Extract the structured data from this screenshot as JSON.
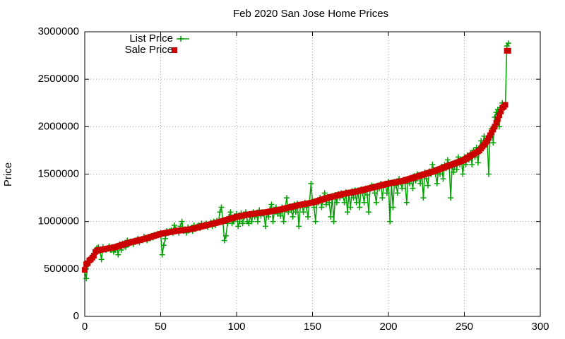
{
  "chart_data": {
    "type": "line",
    "title": "Feb 2020 San Jose Home Prices",
    "y_label": "Price",
    "xlim": [
      0,
      300
    ],
    "xticks": [
      0,
      50,
      100,
      150,
      200,
      250,
      300
    ],
    "ylim": [
      0,
      3000000
    ],
    "yticks": [
      0,
      500000,
      1000000,
      1500000,
      2000000,
      2500000,
      3000000
    ],
    "grid": true,
    "legend": "top-left",
    "x": [
      0,
      1,
      2,
      3,
      4,
      5,
      6,
      7,
      8,
      9,
      10,
      11,
      12,
      13,
      14,
      15,
      16,
      17,
      18,
      19,
      20,
      21,
      22,
      23,
      24,
      25,
      26,
      27,
      28,
      29,
      30,
      31,
      32,
      33,
      34,
      35,
      36,
      37,
      38,
      39,
      40,
      41,
      42,
      43,
      44,
      45,
      46,
      47,
      48,
      49,
      50,
      51,
      52,
      53,
      54,
      55,
      56,
      57,
      58,
      59,
      60,
      61,
      62,
      63,
      64,
      65,
      66,
      67,
      68,
      69,
      70,
      71,
      72,
      73,
      74,
      75,
      76,
      77,
      78,
      79,
      80,
      81,
      82,
      83,
      84,
      85,
      86,
      87,
      88,
      89,
      90,
      91,
      92,
      93,
      94,
      95,
      96,
      97,
      98,
      99,
      100,
      101,
      102,
      103,
      104,
      105,
      106,
      107,
      108,
      109,
      110,
      111,
      112,
      113,
      114,
      115,
      116,
      117,
      118,
      119,
      120,
      121,
      122,
      123,
      124,
      125,
      126,
      127,
      128,
      129,
      130,
      131,
      132,
      133,
      134,
      135,
      136,
      137,
      138,
      139,
      140,
      141,
      142,
      143,
      144,
      145,
      146,
      147,
      148,
      149,
      150,
      151,
      152,
      153,
      154,
      155,
      156,
      157,
      158,
      159,
      160,
      161,
      162,
      163,
      164,
      165,
      166,
      167,
      168,
      169,
      170,
      171,
      172,
      173,
      174,
      175,
      176,
      177,
      178,
      179,
      180,
      181,
      182,
      183,
      184,
      185,
      186,
      187,
      188,
      189,
      190,
      191,
      192,
      193,
      194,
      195,
      196,
      197,
      198,
      199,
      200,
      201,
      202,
      203,
      204,
      205,
      206,
      207,
      208,
      209,
      210,
      211,
      212,
      213,
      214,
      215,
      216,
      217,
      218,
      219,
      220,
      221,
      222,
      223,
      224,
      225,
      226,
      227,
      228,
      229,
      230,
      231,
      232,
      233,
      234,
      235,
      236,
      237,
      238,
      239,
      240,
      241,
      242,
      243,
      244,
      245,
      246,
      247,
      248,
      249,
      250,
      251,
      252,
      253,
      254,
      255,
      256,
      257,
      258,
      259,
      260,
      261,
      262,
      263,
      264,
      265,
      266,
      267,
      268,
      269,
      270,
      271,
      272,
      273,
      274,
      275,
      276,
      277,
      278,
      279
    ],
    "series": [
      {
        "name": "List Price",
        "color": "#00a000",
        "marker": "plus",
        "values": [
          480000,
          400000,
          550000,
          570000,
          600000,
          620000,
          650000,
          700000,
          720000,
          730000,
          700000,
          600000,
          730000,
          710000,
          700000,
          720000,
          740000,
          700000,
          730000,
          680000,
          700000,
          740000,
          650000,
          760000,
          700000,
          770000,
          740000,
          730000,
          800000,
          760000,
          790000,
          780000,
          760000,
          800000,
          790000,
          820000,
          780000,
          810000,
          800000,
          840000,
          830000,
          800000,
          840000,
          820000,
          850000,
          830000,
          860000,
          850000,
          870000,
          860000,
          880000,
          650000,
          750000,
          820000,
          900000,
          880000,
          900000,
          910000,
          880000,
          960000,
          920000,
          900000,
          880000,
          950000,
          1000000,
          900000,
          920000,
          880000,
          940000,
          910000,
          930000,
          900000,
          960000,
          920000,
          950000,
          960000,
          930000,
          980000,
          950000,
          970000,
          980000,
          940000,
          970000,
          990000,
          950000,
          1000000,
          960000,
          1010000,
          990000,
          1100000,
          1150000,
          1000000,
          800000,
          850000,
          980000,
          1050000,
          1100000,
          980000,
          1000000,
          1030000,
          1080000,
          950000,
          1000000,
          1090000,
          980000,
          1050000,
          1100000,
          1000000,
          980000,
          1060000,
          1000000,
          1100000,
          1050000,
          1090000,
          1000000,
          1120000,
          1060000,
          1100000,
          1080000,
          950000,
          1100000,
          1050000,
          1130000,
          1180000,
          1000000,
          1110000,
          1150000,
          1080000,
          1120000,
          1060000,
          1150000,
          1000000,
          1140000,
          1250000,
          1100000,
          1160000,
          1120000,
          1050000,
          1180000,
          1100000,
          1190000,
          950000,
          1160000,
          1180000,
          1100000,
          1200000,
          1150000,
          1050000,
          1200000,
          1400000,
          1210000,
          1150000,
          1000000,
          1220000,
          1200000,
          1250000,
          1150000,
          1240000,
          1300000,
          1180000,
          1260000,
          1200000,
          1050000,
          1270000,
          1000000,
          1280000,
          1200000,
          1290000,
          1250000,
          1300000,
          1280000,
          1200000,
          1310000,
          1100000,
          1300000,
          1150000,
          1320000,
          1250000,
          1330000,
          1200000,
          1330000,
          1150000,
          1340000,
          1300000,
          1200000,
          1350000,
          1280000,
          1100000,
          1360000,
          1380000,
          1370000,
          1300000,
          1200000,
          1380000,
          1350000,
          1400000,
          1250000,
          1380000,
          1400000,
          1300000,
          1420000,
          1000000,
          1400000,
          1150000,
          1420000,
          1380000,
          1300000,
          1450000,
          1410000,
          1350000,
          1440000,
          1400000,
          1200000,
          1450000,
          1400000,
          1460000,
          1350000,
          1480000,
          1430000,
          1500000,
          1490000,
          1400000,
          1500000,
          1250000,
          1520000,
          1450000,
          1380000,
          1530000,
          1500000,
          1600000,
          1540000,
          1500000,
          1400000,
          1550000,
          1500000,
          1580000,
          1450000,
          1600000,
          1560000,
          1650000,
          1600000,
          1250000,
          1600000,
          1520000,
          1620000,
          1550000,
          1680000,
          1600000,
          1650000,
          1500000,
          1680000,
          1600000,
          1700000,
          1650000,
          1720000,
          1600000,
          1750000,
          1680000,
          1780000,
          1620000,
          1780000,
          1850000,
          1800000,
          1900000,
          1850000,
          1880000,
          1500000,
          1920000,
          1980000,
          1830000,
          2100000,
          2150000,
          2180000,
          2000000,
          2200000,
          2250000,
          2220000,
          2230000,
          2850000,
          2880000
        ]
      },
      {
        "name": "Sale Price",
        "color": "#cc0000",
        "marker": "square",
        "values": [
          490000,
          550000,
          560000,
          590000,
          600000,
          620000,
          640000,
          680000,
          690000,
          700000,
          700000,
          703000,
          706000,
          709000,
          712000,
          715000,
          718000,
          721000,
          724000,
          727000,
          730000,
          735000,
          740000,
          745000,
          750000,
          755000,
          760000,
          765000,
          770000,
          775000,
          780000,
          784000,
          788000,
          792000,
          796000,
          800000,
          804000,
          808000,
          812000,
          816000,
          820000,
          825000,
          830000,
          835000,
          840000,
          845000,
          850000,
          855000,
          860000,
          865000,
          870000,
          873000,
          876000,
          879000,
          882000,
          885000,
          888000,
          891000,
          894000,
          897000,
          900000,
          902000,
          904000,
          906000,
          908000,
          910000,
          912000,
          914000,
          916000,
          918000,
          920000,
          924000,
          928000,
          932000,
          936000,
          940000,
          944000,
          948000,
          952000,
          956000,
          960000,
          964000,
          968000,
          972000,
          976000,
          980000,
          984000,
          988000,
          992000,
          996000,
          1000000,
          1005000,
          1010000,
          1015000,
          1020000,
          1025000,
          1030000,
          1035000,
          1040000,
          1045000,
          1050000,
          1053000,
          1056000,
          1059000,
          1062000,
          1065000,
          1068000,
          1071000,
          1074000,
          1077000,
          1080000,
          1082000,
          1084000,
          1086000,
          1088000,
          1090000,
          1092000,
          1094000,
          1096000,
          1098000,
          1100000,
          1103000,
          1106000,
          1109000,
          1112000,
          1115000,
          1118000,
          1121000,
          1124000,
          1127000,
          1130000,
          1134000,
          1138000,
          1142000,
          1146000,
          1150000,
          1154000,
          1158000,
          1162000,
          1166000,
          1170000,
          1173000,
          1176000,
          1179000,
          1182000,
          1185000,
          1188000,
          1191000,
          1194000,
          1197000,
          1200000,
          1205000,
          1210000,
          1215000,
          1220000,
          1225000,
          1230000,
          1235000,
          1240000,
          1245000,
          1250000,
          1254000,
          1258000,
          1262000,
          1266000,
          1270000,
          1274000,
          1278000,
          1282000,
          1286000,
          1290000,
          1293000,
          1296000,
          1299000,
          1302000,
          1305000,
          1308000,
          1311000,
          1314000,
          1317000,
          1320000,
          1324000,
          1328000,
          1332000,
          1336000,
          1340000,
          1344000,
          1348000,
          1352000,
          1356000,
          1360000,
          1364000,
          1368000,
          1372000,
          1376000,
          1380000,
          1384000,
          1388000,
          1392000,
          1396000,
          1400000,
          1403000,
          1406000,
          1409000,
          1412000,
          1415000,
          1418000,
          1421000,
          1424000,
          1427000,
          1430000,
          1435000,
          1440000,
          1445000,
          1450000,
          1455000,
          1460000,
          1465000,
          1470000,
          1475000,
          1480000,
          1485000,
          1490000,
          1495000,
          1500000,
          1505000,
          1510000,
          1515000,
          1520000,
          1525000,
          1530000,
          1536000,
          1542000,
          1548000,
          1554000,
          1560000,
          1566000,
          1572000,
          1578000,
          1584000,
          1590000,
          1596000,
          1602000,
          1608000,
          1614000,
          1620000,
          1626000,
          1632000,
          1638000,
          1644000,
          1650000,
          1660000,
          1670000,
          1680000,
          1690000,
          1700000,
          1710000,
          1720000,
          1730000,
          1740000,
          1750000,
          1770000,
          1790000,
          1810000,
          1830000,
          1850000,
          1880000,
          1910000,
          1940000,
          1970000,
          2000000,
          2040000,
          2080000,
          2120000,
          2160000,
          2200000,
          2210000,
          2230000,
          2800000,
          2800000
        ]
      }
    ]
  }
}
